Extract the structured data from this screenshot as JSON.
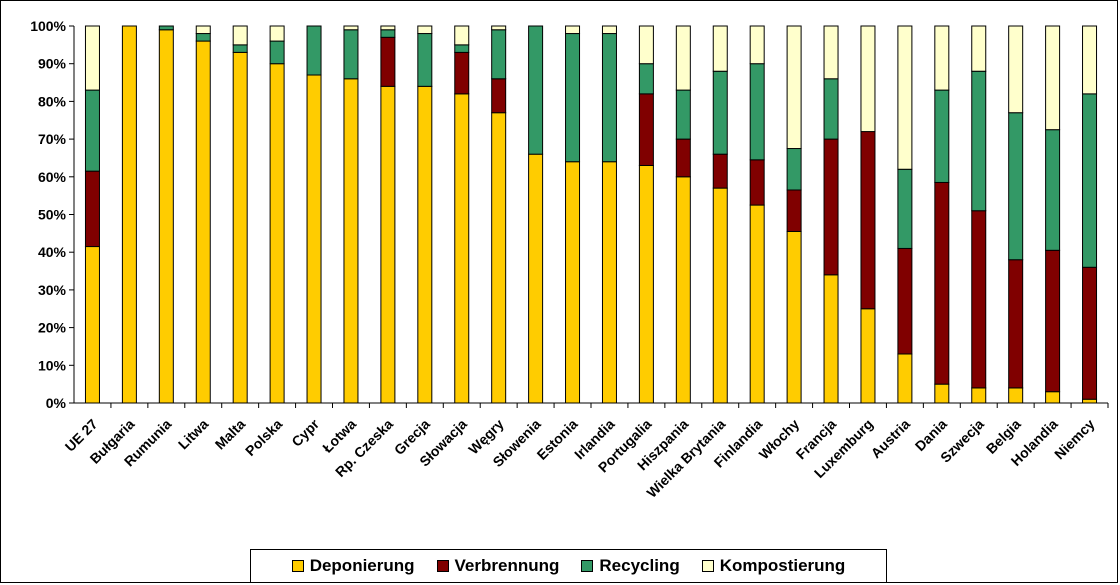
{
  "chart_data": {
    "type": "bar",
    "stacked": true,
    "percent": true,
    "title": "",
    "xlabel": "",
    "ylabel": "",
    "ylim": [
      0,
      100
    ],
    "y_ticks": [
      "0%",
      "10%",
      "20%",
      "30%",
      "40%",
      "50%",
      "60%",
      "70%",
      "80%",
      "90%",
      "100%"
    ],
    "grid": false,
    "legend_position": "bottom",
    "categories": [
      "UE 27",
      "Bułgaria",
      "Rumunia",
      "Litwa",
      "Malta",
      "Polska",
      "Cypr",
      "Łotwa",
      "Rp. Czeska",
      "Grecja",
      "Słowacja",
      "Węgry",
      "Słowenia",
      "Estonia",
      "Irlandia",
      "Portugalia",
      "Hiszpania",
      "Wielka Brytania",
      "Finlandia",
      "Włochy",
      "Francja",
      "Luxemburg",
      "Austria",
      "Dania",
      "Szwecja",
      "Belgia",
      "Holandia",
      "Niemcy"
    ],
    "series": [
      {
        "name": "Deponierung",
        "color": "#FFCC00",
        "values": [
          41.5,
          100,
          99,
          96,
          93,
          90,
          87,
          86,
          84,
          84,
          82,
          77,
          66,
          64,
          64,
          63,
          60,
          57,
          52.5,
          45.5,
          34,
          25,
          13,
          5,
          4,
          4,
          3,
          1
        ]
      },
      {
        "name": "Verbrennung",
        "color": "#800000",
        "values": [
          20,
          0,
          0,
          0,
          0,
          0,
          0,
          0,
          13,
          0,
          11,
          9,
          0,
          0,
          0,
          19,
          10,
          9,
          12,
          11,
          36,
          47,
          28,
          53.5,
          47,
          34,
          37.5,
          35
        ]
      },
      {
        "name": "Recycling",
        "color": "#339966",
        "values": [
          21.5,
          0,
          1,
          2,
          2,
          6,
          13,
          13,
          2,
          14,
          2,
          13,
          34,
          34,
          34,
          8,
          13,
          22,
          25.5,
          11,
          16,
          0,
          21,
          24.5,
          37,
          39,
          32,
          46
        ]
      },
      {
        "name": "Kompostierung",
        "color": "#FFFFCC",
        "values": [
          17,
          0,
          0,
          2,
          5,
          4,
          0,
          1,
          1,
          2,
          5,
          1,
          0,
          2,
          2,
          10,
          17,
          12,
          10,
          32.5,
          14,
          28,
          38,
          17,
          12,
          23,
          27.5,
          18
        ]
      }
    ]
  }
}
